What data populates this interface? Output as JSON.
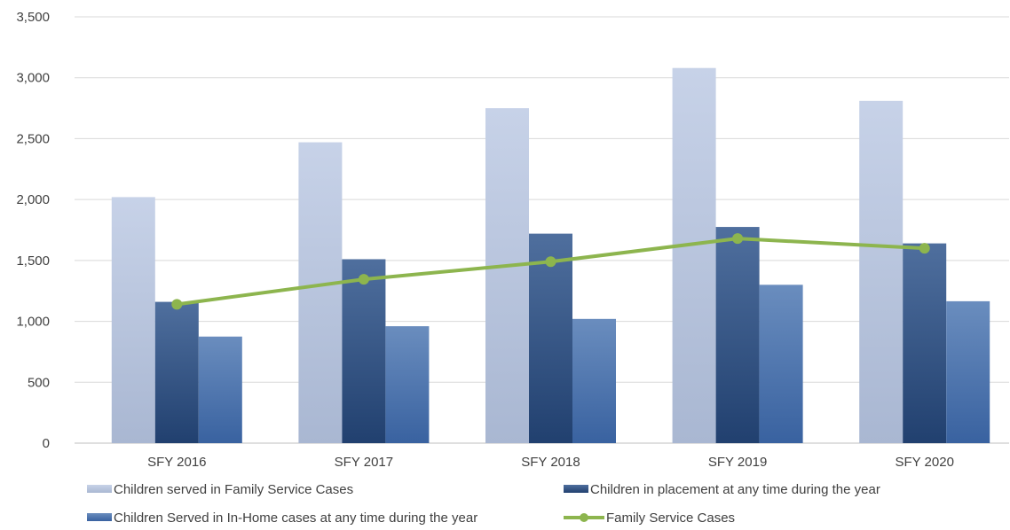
{
  "chart_data": {
    "type": "bar",
    "title": "",
    "xlabel": "",
    "ylabel": "",
    "categories": [
      "SFY 2016",
      "SFY 2017",
      "SFY 2018",
      "SFY 2019",
      "SFY 2020"
    ],
    "ylim": [
      0,
      3500
    ],
    "yticks": [
      0,
      500,
      1000,
      1500,
      2000,
      2500,
      3000,
      3500
    ],
    "ytick_labels": [
      "0",
      "500",
      "1,000",
      "1,500",
      "2,000",
      "2,500",
      "3,000",
      "3,500"
    ],
    "grid": true,
    "legend_position": "bottom",
    "series": [
      {
        "name": "Children served in Family Service Cases",
        "kind": "bar",
        "color": "#b8c5de",
        "values": [
          2020,
          2470,
          2750,
          3080,
          2810
        ]
      },
      {
        "name": "Children in placement at any time during the year",
        "kind": "bar",
        "color": "#2e5487",
        "values": [
          1160,
          1510,
          1720,
          1775,
          1640
        ]
      },
      {
        "name": "Children Served in In-Home cases at any time during the year",
        "kind": "bar",
        "color": "#4e76b0",
        "values": [
          875,
          960,
          1020,
          1300,
          1165
        ]
      },
      {
        "name": "Family Service Cases",
        "kind": "line",
        "color": "#8db54e",
        "values": [
          1140,
          1345,
          1490,
          1680,
          1600
        ]
      }
    ]
  }
}
